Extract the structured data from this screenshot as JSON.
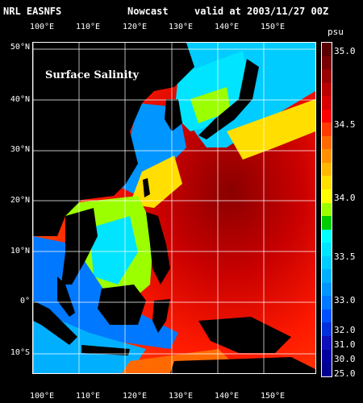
{
  "header": {
    "source": "NRL EASNFS",
    "product": "Nowcast",
    "valid": "valid at 2003/11/27 00Z"
  },
  "map": {
    "title": "Surface Salinity",
    "lon_labels": [
      "100°E",
      "110°E",
      "120°E",
      "130°E",
      "140°E",
      "150°E"
    ],
    "lat_labels": [
      "50°N",
      "40°N",
      "30°N",
      "20°N",
      "10°N",
      "0°",
      "10°S"
    ]
  },
  "colorbar": {
    "unit": "psu",
    "labels": [
      "35.0",
      "34.5",
      "34.0",
      "33.5",
      "33.0",
      "32.0",
      "31.0",
      "30.0",
      "25.0"
    ],
    "colors": [
      "#5a0000",
      "#7a0000",
      "#9b0000",
      "#bb0000",
      "#d80000",
      "#ff0000",
      "#ff3a00",
      "#ff6a00",
      "#ff9100",
      "#ffb800",
      "#ffde00",
      "#ffff00",
      "#9cff00",
      "#00cc00",
      "#00ffff",
      "#00e4ff",
      "#00ccff",
      "#00b0ff",
      "#0095ff",
      "#0078ff",
      "#0050ff",
      "#0030dd",
      "#1010bb",
      "#0000a0",
      "#000090"
    ]
  }
}
